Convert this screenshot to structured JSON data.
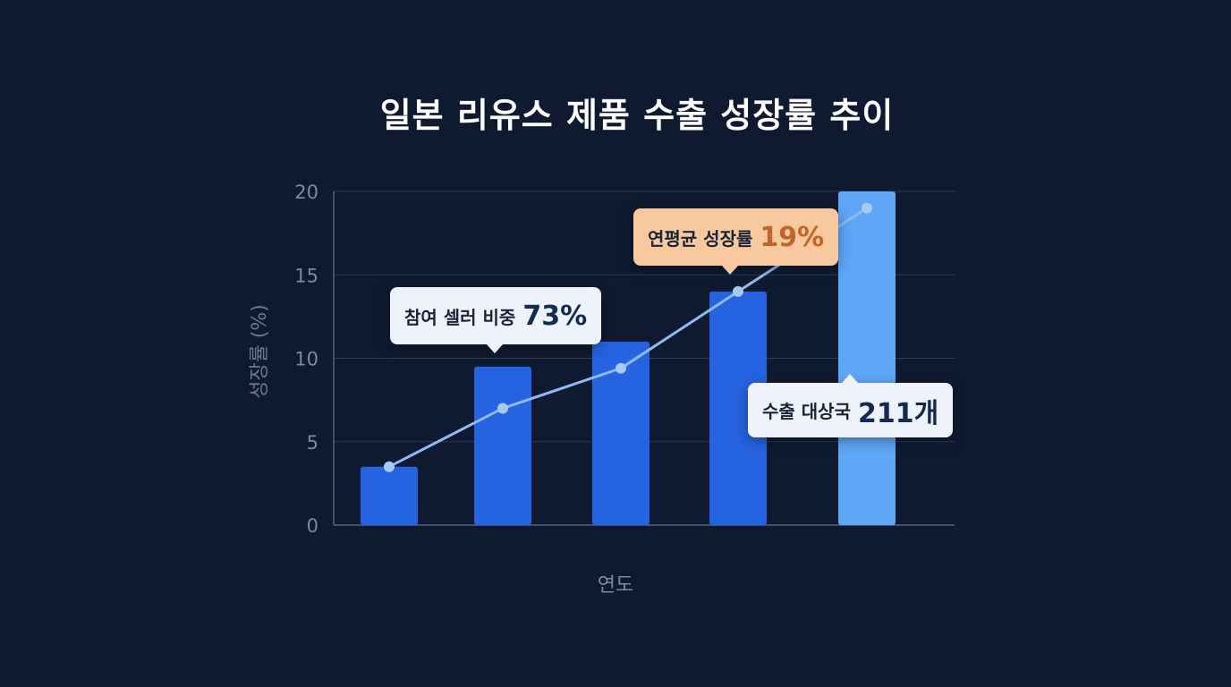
{
  "chart_data": {
    "type": "bar",
    "title": "일본 리유스 제품 수출 성장률 추이",
    "xlabel": "연도",
    "ylabel": "성장률 (%)",
    "ylim": [
      0,
      20
    ],
    "yticks": [
      0,
      5,
      10,
      15,
      20
    ],
    "grid": true,
    "categories": [
      "",
      "",
      "",
      "",
      ""
    ],
    "values": [
      3.5,
      9.5,
      11.0,
      14.0,
      20.0
    ],
    "line_values": [
      3.5,
      7.0,
      9.4,
      14.0,
      19.0
    ],
    "colors": {
      "bar": "#2563e0",
      "bar_highlight": "#5ea6f6",
      "line": "#8fbaf2",
      "grid": "#2e3b57",
      "axis": "#54627f",
      "tick": "#7b88a3"
    },
    "annotations": [
      {
        "label": "참여 셀러 비중",
        "value": "73%",
        "style": "white"
      },
      {
        "label": "연평균 성장률",
        "value": "19%",
        "style": "peach"
      },
      {
        "label": "수출 대상국",
        "value": "211개",
        "style": "white"
      }
    ]
  }
}
